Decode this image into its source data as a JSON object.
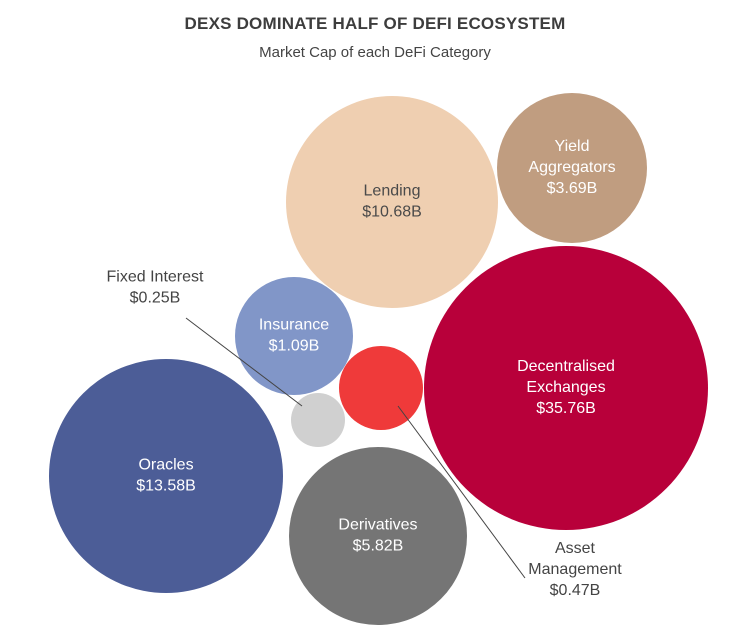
{
  "title": "DEXS DOMINATE HALF OF DEFI ECOSYSTEM",
  "subtitle": "Market Cap of each DeFi Category",
  "chart_data": {
    "type": "bubble",
    "title": "DEXS DOMINATE HALF OF DEFI ECOSYSTEM",
    "subtitle": "Market Cap of each DeFi Category",
    "unit": "USD billions",
    "series": [
      {
        "name": "Lending",
        "value": 10.68,
        "label": "$10.68B",
        "color": "#efcfb1",
        "text_color": "#4a4a4a"
      },
      {
        "name": "Yield Aggregators",
        "label_lines": [
          "Yield",
          "Aggregators"
        ],
        "value": 3.69,
        "label": "$3.69B",
        "color": "#c09d80",
        "text_color": "#ffffff"
      },
      {
        "name": "Decentralised Exchanges",
        "label_lines": [
          "Decentralised",
          "Exchanges"
        ],
        "value": 35.76,
        "label": "$35.76B",
        "color": "#b8003a",
        "text_color": "#ffffff"
      },
      {
        "name": "Insurance",
        "value": 1.09,
        "label": "$1.09B",
        "color": "#8196c8",
        "text_color": "#ffffff"
      },
      {
        "name": "Oracles",
        "value": 13.58,
        "label": "$13.58B",
        "color": "#4c5d97",
        "text_color": "#ffffff"
      },
      {
        "name": "Derivatives",
        "value": 5.82,
        "label": "$5.82B",
        "color": "#757575",
        "text_color": "#ffffff"
      },
      {
        "name": "Fixed Interest",
        "value": 0.25,
        "label": "$0.25B",
        "color": "#d0d0d0",
        "text_color": "#444444",
        "callout": true
      },
      {
        "name": "Asset Management",
        "label_lines": [
          "Asset",
          "Management"
        ],
        "value": 0.47,
        "label": "$0.47B",
        "color": "#ef3a3a",
        "text_color": "#444444",
        "callout": true
      }
    ]
  }
}
